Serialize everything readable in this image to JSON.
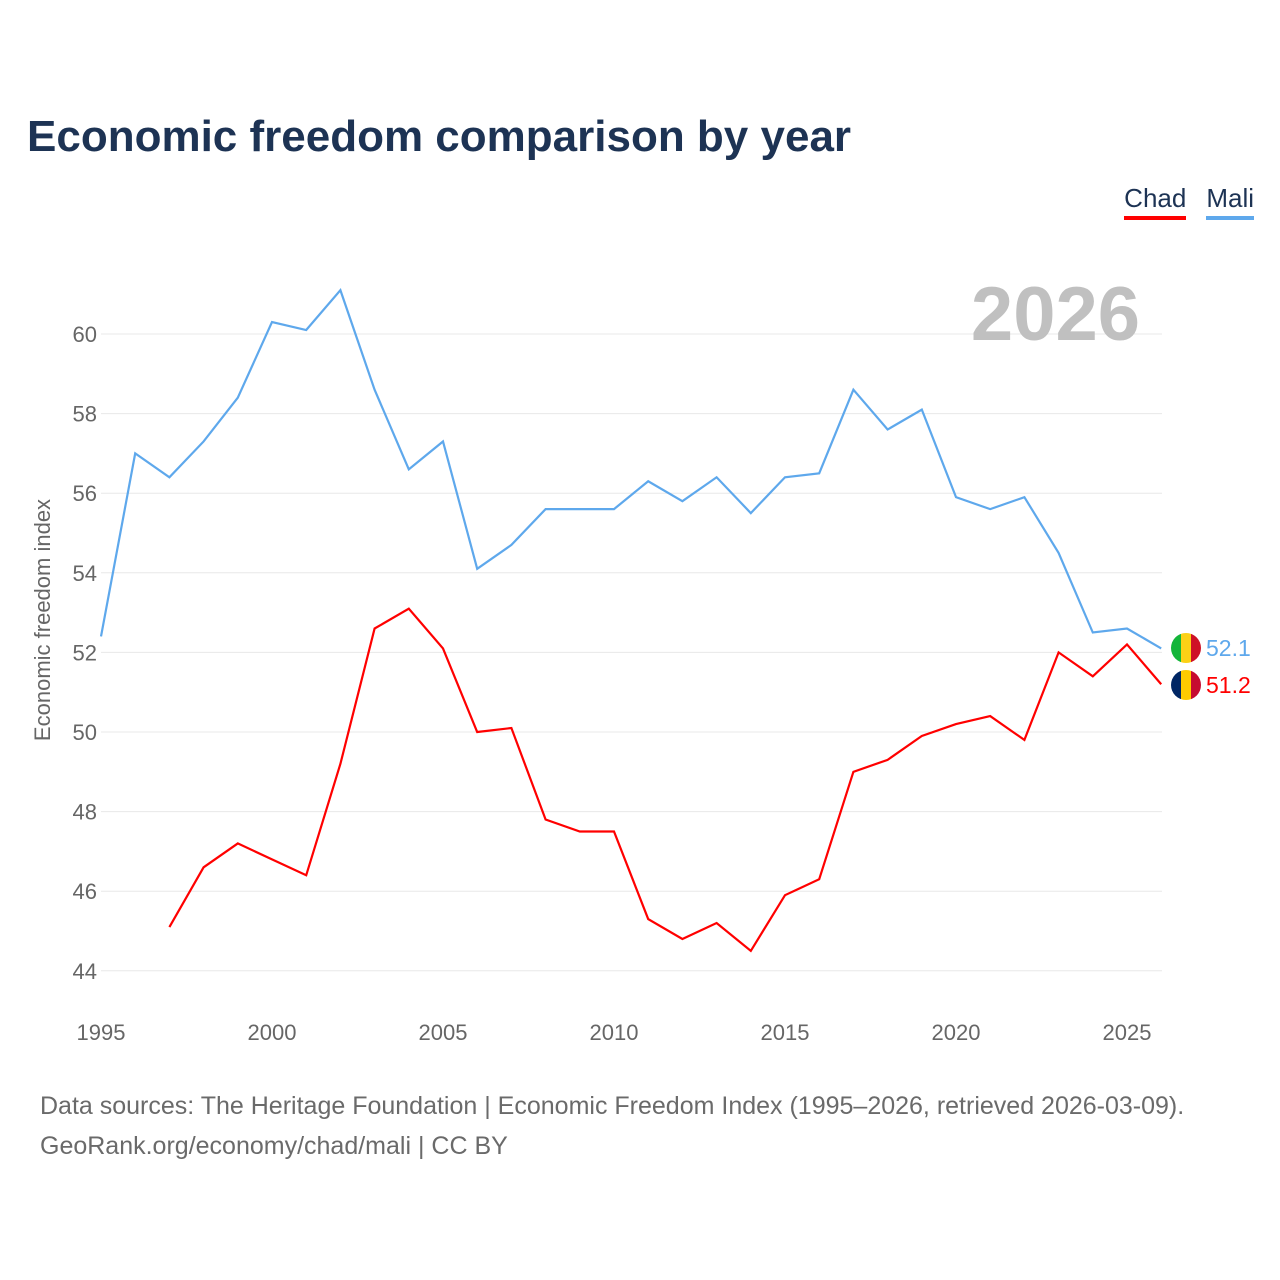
{
  "title": "Economic freedom comparison by year",
  "year_label": "2026",
  "source_line1": "Data sources: The Heritage Foundation | Economic Freedom Index (1995–2026, retrieved 2026-03-09).",
  "source_line2": "GeoRank.org/economy/chad/mali | CC BY",
  "chart_data": {
    "type": "line",
    "title": "Economic freedom comparison by year",
    "xlabel": "",
    "ylabel": "Economic freedom index",
    "xlim": [
      1995,
      2026
    ],
    "ylim": [
      44,
      61.5
    ],
    "xticks": [
      1995,
      2000,
      2005,
      2010,
      2015,
      2020,
      2025
    ],
    "yticks": [
      44,
      46,
      48,
      50,
      52,
      54,
      56,
      58,
      60
    ],
    "grid": true,
    "legend": "top-right",
    "series": [
      {
        "name": "Chad",
        "color": "#ff0000",
        "end_label": "51.2",
        "x": [
          1997,
          1998,
          1999,
          2000,
          2001,
          2002,
          2003,
          2004,
          2005,
          2006,
          2007,
          2008,
          2009,
          2010,
          2011,
          2012,
          2013,
          2014,
          2015,
          2016,
          2017,
          2018,
          2019,
          2020,
          2021,
          2022,
          2023,
          2024,
          2025,
          2026
        ],
        "values": [
          45.1,
          46.6,
          47.2,
          46.8,
          46.4,
          49.2,
          52.6,
          53.1,
          52.1,
          50.0,
          50.1,
          47.8,
          47.5,
          47.5,
          45.3,
          44.8,
          45.2,
          44.5,
          45.9,
          46.3,
          49.0,
          49.3,
          49.9,
          50.2,
          50.4,
          49.8,
          52.0,
          51.4,
          52.2,
          51.2
        ]
      },
      {
        "name": "Mali",
        "color": "#5ea8ec",
        "end_label": "52.1",
        "x": [
          1995,
          1996,
          1997,
          1998,
          1999,
          2000,
          2001,
          2002,
          2003,
          2004,
          2005,
          2006,
          2007,
          2008,
          2009,
          2010,
          2011,
          2012,
          2013,
          2014,
          2015,
          2016,
          2017,
          2018,
          2019,
          2020,
          2021,
          2022,
          2023,
          2024,
          2025,
          2026
        ],
        "values": [
          52.4,
          57.0,
          56.4,
          57.3,
          58.4,
          60.3,
          60.1,
          61.1,
          58.6,
          56.6,
          57.3,
          54.1,
          54.7,
          55.6,
          55.6,
          55.6,
          56.3,
          55.8,
          56.4,
          55.5,
          56.4,
          56.5,
          58.6,
          57.6,
          58.1,
          55.9,
          55.6,
          55.9,
          54.5,
          52.5,
          52.6,
          52.1
        ]
      }
    ]
  }
}
